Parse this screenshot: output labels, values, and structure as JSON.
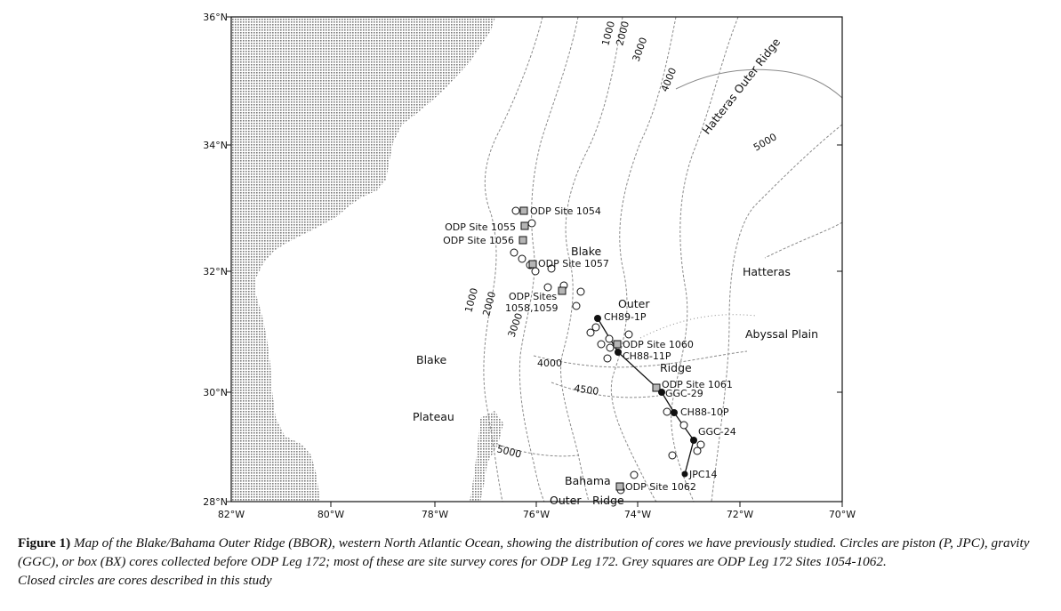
{
  "map": {
    "lat_labels": [
      "36°N",
      "34°N",
      "32°N",
      "30°N",
      "28°N"
    ],
    "lon_labels": [
      "82°W",
      "80°W",
      "78°W",
      "76°W",
      "74°W",
      "72°W",
      "70°W"
    ],
    "contour_labels": [
      "1000",
      "2000",
      "3000",
      "4000",
      "5000",
      "1000",
      "2000",
      "3000",
      "4000",
      "4500",
      "5000"
    ],
    "region_labels": [
      "Hatteras Outer Ridge",
      "Blake",
      "Outer",
      "Ridge",
      "Hatteras",
      "Abyssal Plain",
      "Blake",
      "Plateau",
      "Bahama",
      "Outer",
      "Ridge"
    ],
    "site_labels": [
      "ODP Site 1054",
      "ODP Site 1055",
      "ODP Site 1056",
      "ODP Site 1057",
      "ODP Sites",
      "1058,1059",
      "ODP Site 1060",
      "ODP Site 1061",
      "ODP Site 1062"
    ],
    "core_labels": [
      "CH89-1P",
      "CH88-11P",
      "GGC-29",
      "CH88-10P",
      "GGC-24",
      "JPC14"
    ],
    "colors": {
      "land": "#9a9a9a",
      "contour": "#8a8a8a",
      "square_fill": "#b5b5b5",
      "ink": "#111111"
    }
  },
  "caption": {
    "label": "Figure 1)",
    "text": " Map of the Blake/Bahama Outer Ridge (BBOR), western North Atlantic Ocean, showing the distribution of cores we have previously studied. Circles are piston (P, JPC), gravity (GGC), or box (BX) cores collected before ODP Leg 172; most of these are site survey cores for ODP Leg 172. Grey squares are ODP Leg 172 Sites 1054-1062.",
    "tail": "Closed circles are cores described in this study"
  }
}
